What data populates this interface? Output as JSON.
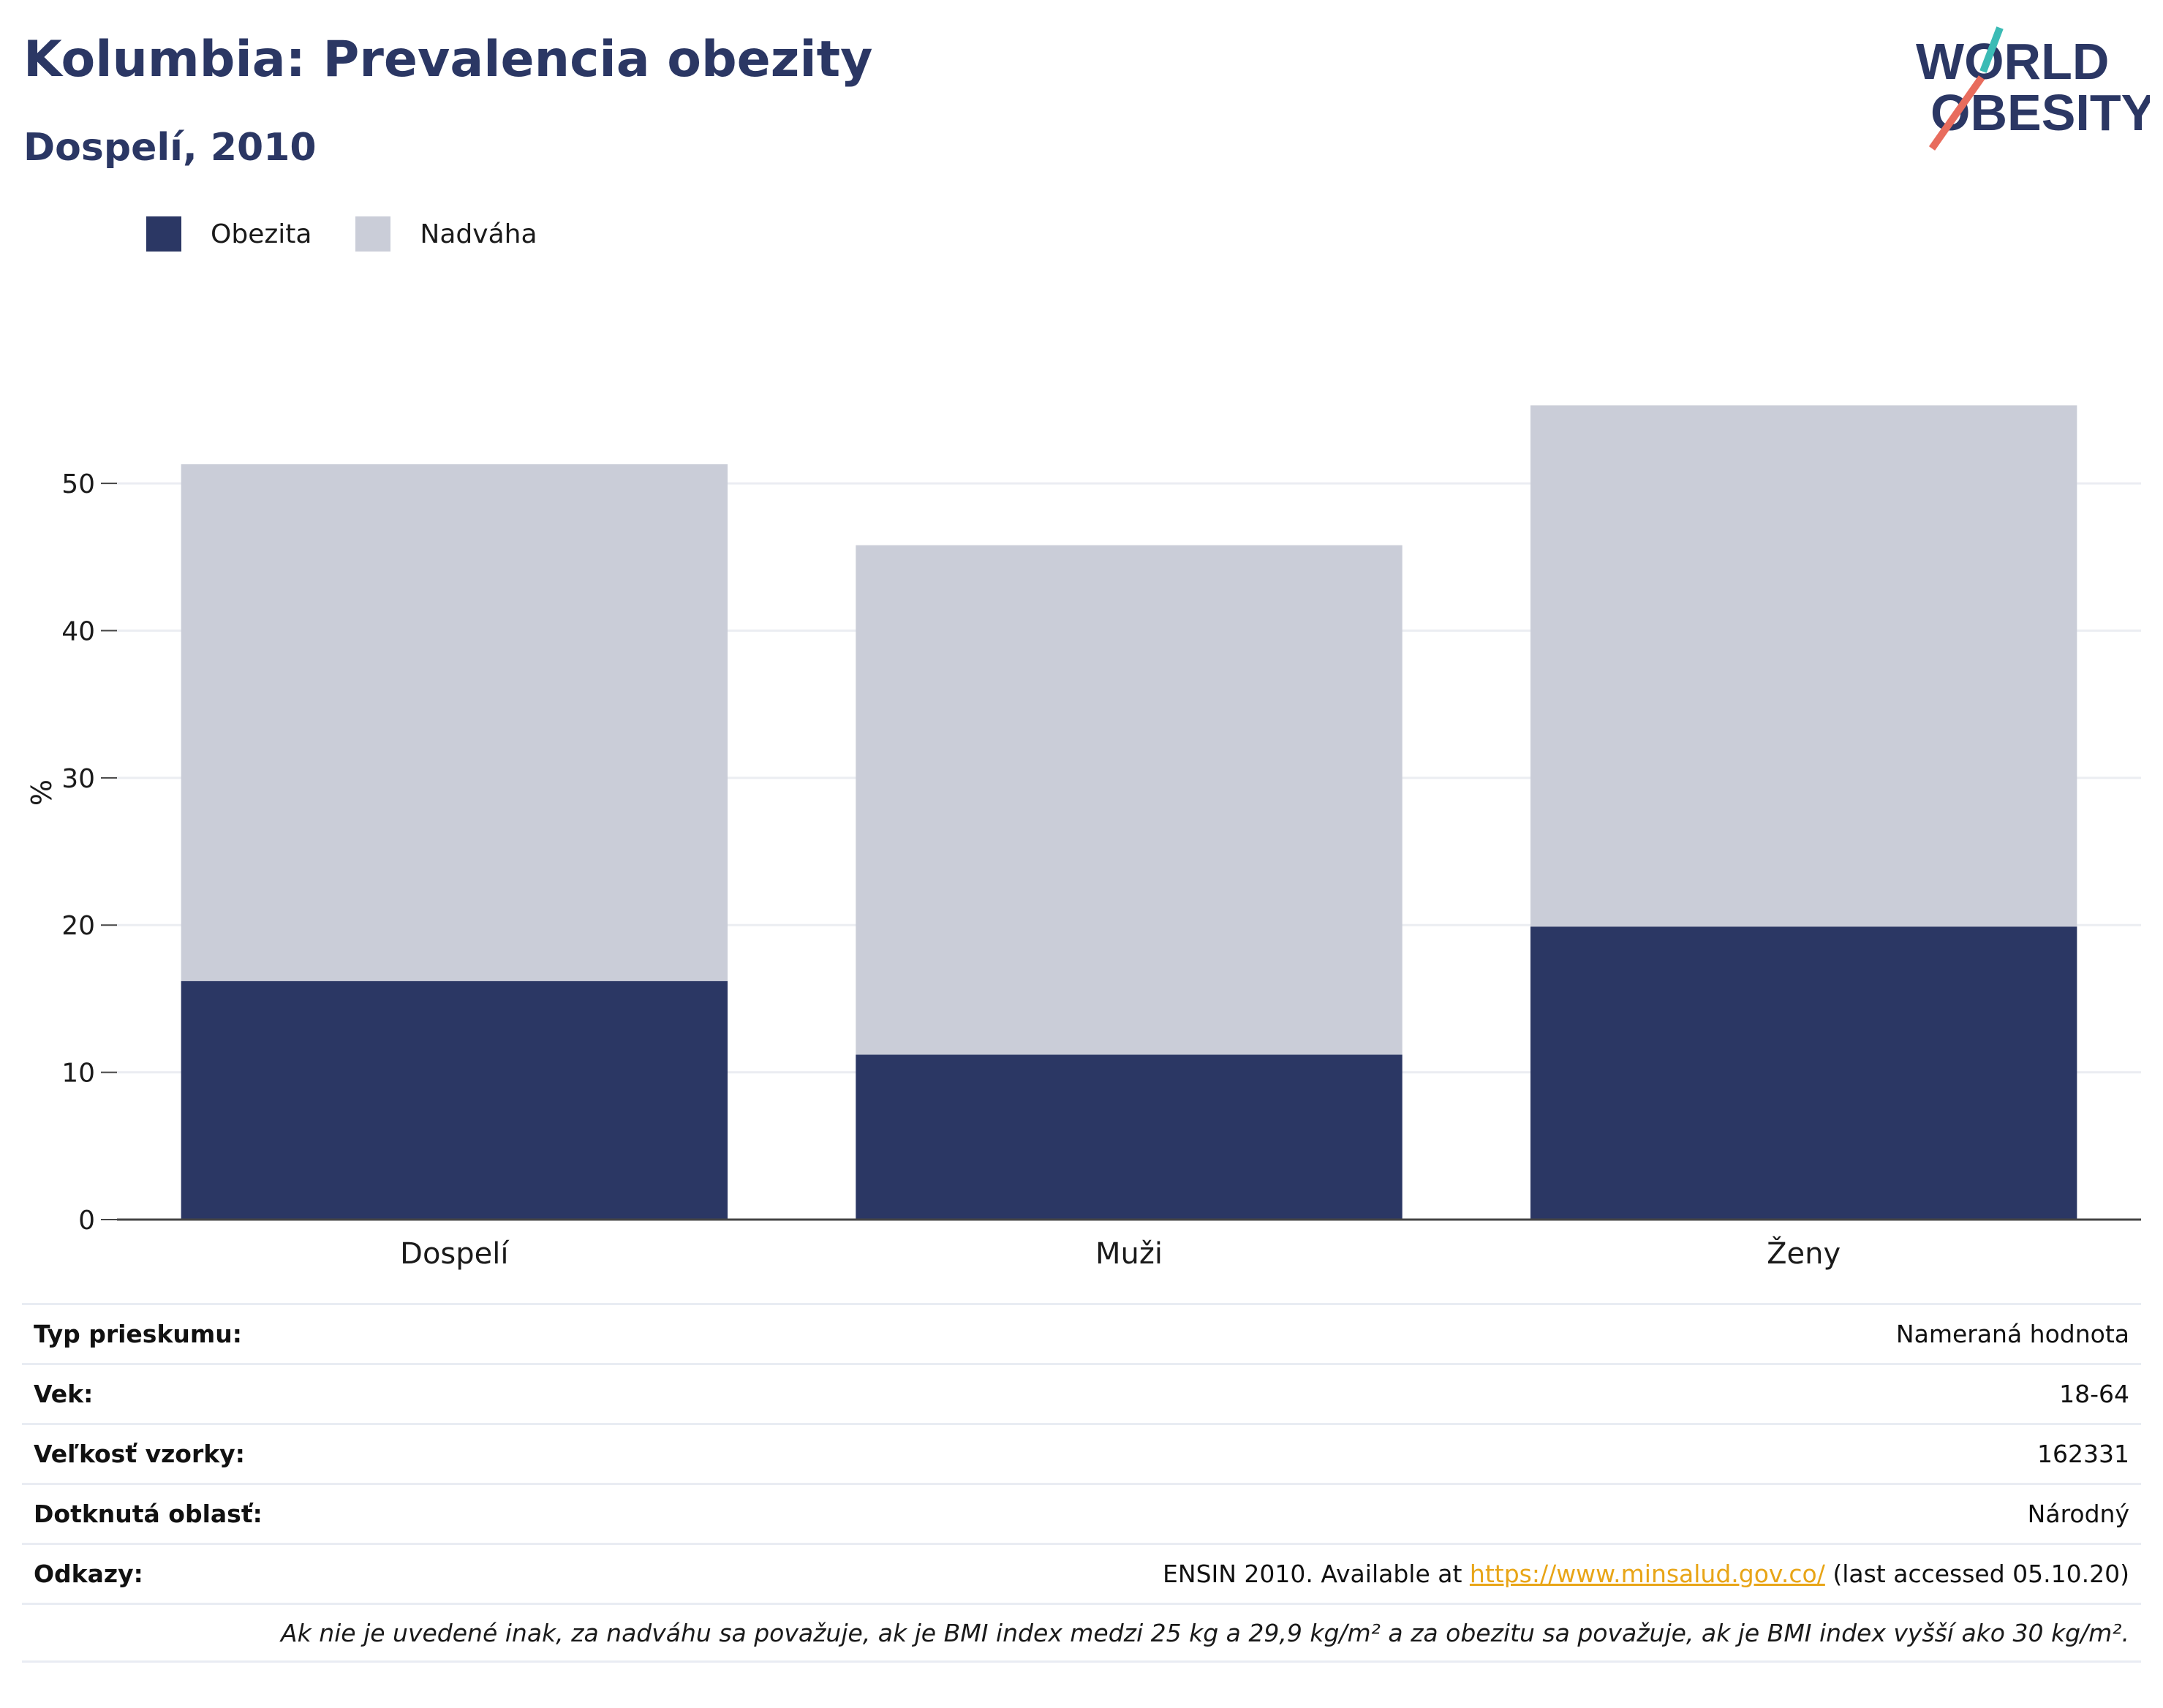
{
  "header": {
    "title": "Kolumbia: Prevalencia obezity",
    "subtitle": "Dospelí, 2010"
  },
  "logo": {
    "line1": "WORLD",
    "line2": "OBESITY"
  },
  "colors": {
    "obesity": "#2b3764",
    "overweight": "#cacdd8",
    "title": "#2b3764",
    "grid": "#ebedf2",
    "link": "#e8a517"
  },
  "chart_data": {
    "type": "bar",
    "stacked": true,
    "categories": [
      "Dospelí",
      "Muži",
      "Ženy"
    ],
    "series": [
      {
        "name": "Obezita",
        "values": [
          16.2,
          11.2,
          19.9
        ]
      },
      {
        "name": "Nadváha",
        "values": [
          35.1,
          34.6,
          35.4
        ]
      }
    ],
    "ylabel": "%",
    "ylim": [
      0,
      58
    ],
    "yticks": [
      0,
      10,
      20,
      30,
      40,
      50
    ],
    "grid": true,
    "legend_position": "top-left"
  },
  "info": {
    "rows": [
      {
        "label": "Typ prieskumu:",
        "value": "Nameraná hodnota"
      },
      {
        "label": "Vek:",
        "value": "18-64"
      },
      {
        "label": "Veľkosť vzorky:",
        "value": "162331"
      },
      {
        "label": "Dotknutá oblasť:",
        "value": "Národný"
      }
    ],
    "references": {
      "label": "Odkazy:",
      "prefix": "ENSIN 2010. Available at ",
      "link": "https://www.minsalud.gov.co/",
      "suffix": " (last accessed 05.10.20)"
    },
    "note": "Ak nie je uvedené inak, za nadváhu sa považuje, ak je BMI index medzi 25 kg a 29,9 kg/m² a za obezitu sa považuje, ak je BMI index vyšší ako 30 kg/m²."
  }
}
